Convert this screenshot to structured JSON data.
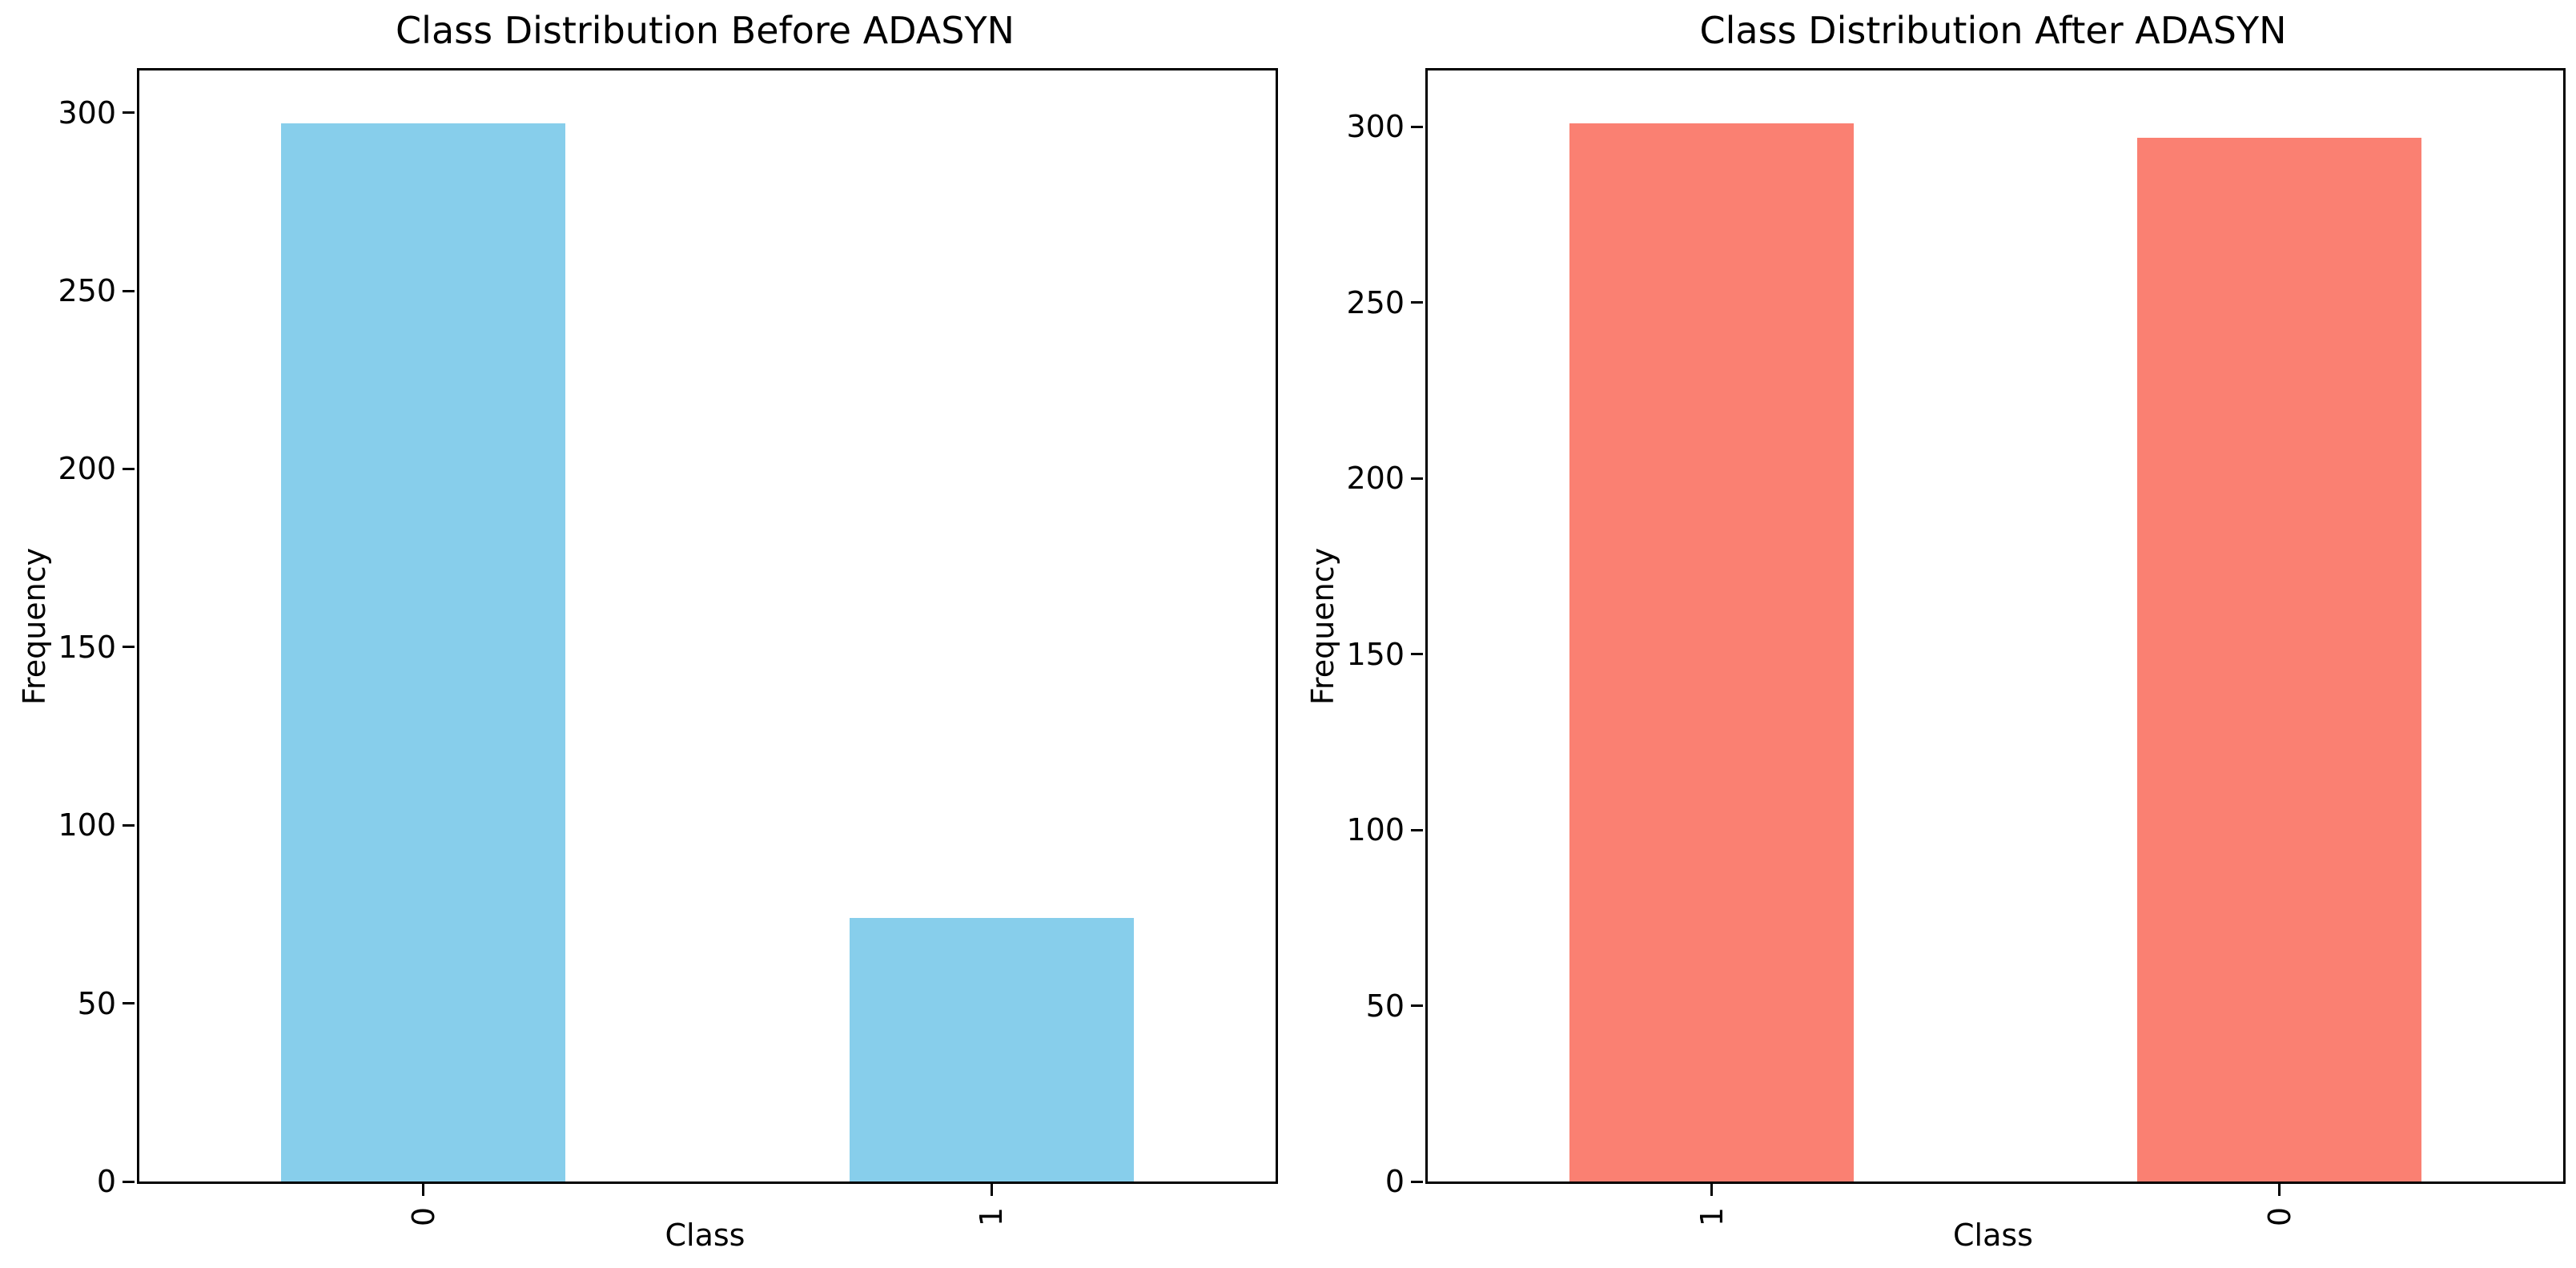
{
  "figure": {
    "background": "#ffffff"
  },
  "colors": {
    "before_bar": "#87CEEB",
    "after_bar": "#FA8072",
    "spine": "#000000",
    "text": "#000000"
  },
  "chart_data": [
    {
      "type": "bar",
      "title": "Class Distribution Before ADASYN",
      "xlabel": "Class",
      "ylabel": "Frequency",
      "categories": [
        "0",
        "1"
      ],
      "values": [
        297,
        74
      ],
      "bar_color": "#87CEEB",
      "yticks": [
        0,
        50,
        100,
        150,
        200,
        250,
        300
      ],
      "ylim": [
        0,
        311.85
      ],
      "xtick_rotation": 90,
      "grid": false,
      "legend": "none"
    },
    {
      "type": "bar",
      "title": "Class Distribution After ADASYN",
      "xlabel": "Class",
      "ylabel": "Frequency",
      "categories": [
        "1",
        "0"
      ],
      "values": [
        301,
        297
      ],
      "bar_color": "#FA8072",
      "yticks": [
        0,
        50,
        100,
        150,
        200,
        250,
        300
      ],
      "ylim": [
        0,
        316.05
      ],
      "xtick_rotation": 90,
      "grid": false,
      "legend": "none"
    }
  ]
}
